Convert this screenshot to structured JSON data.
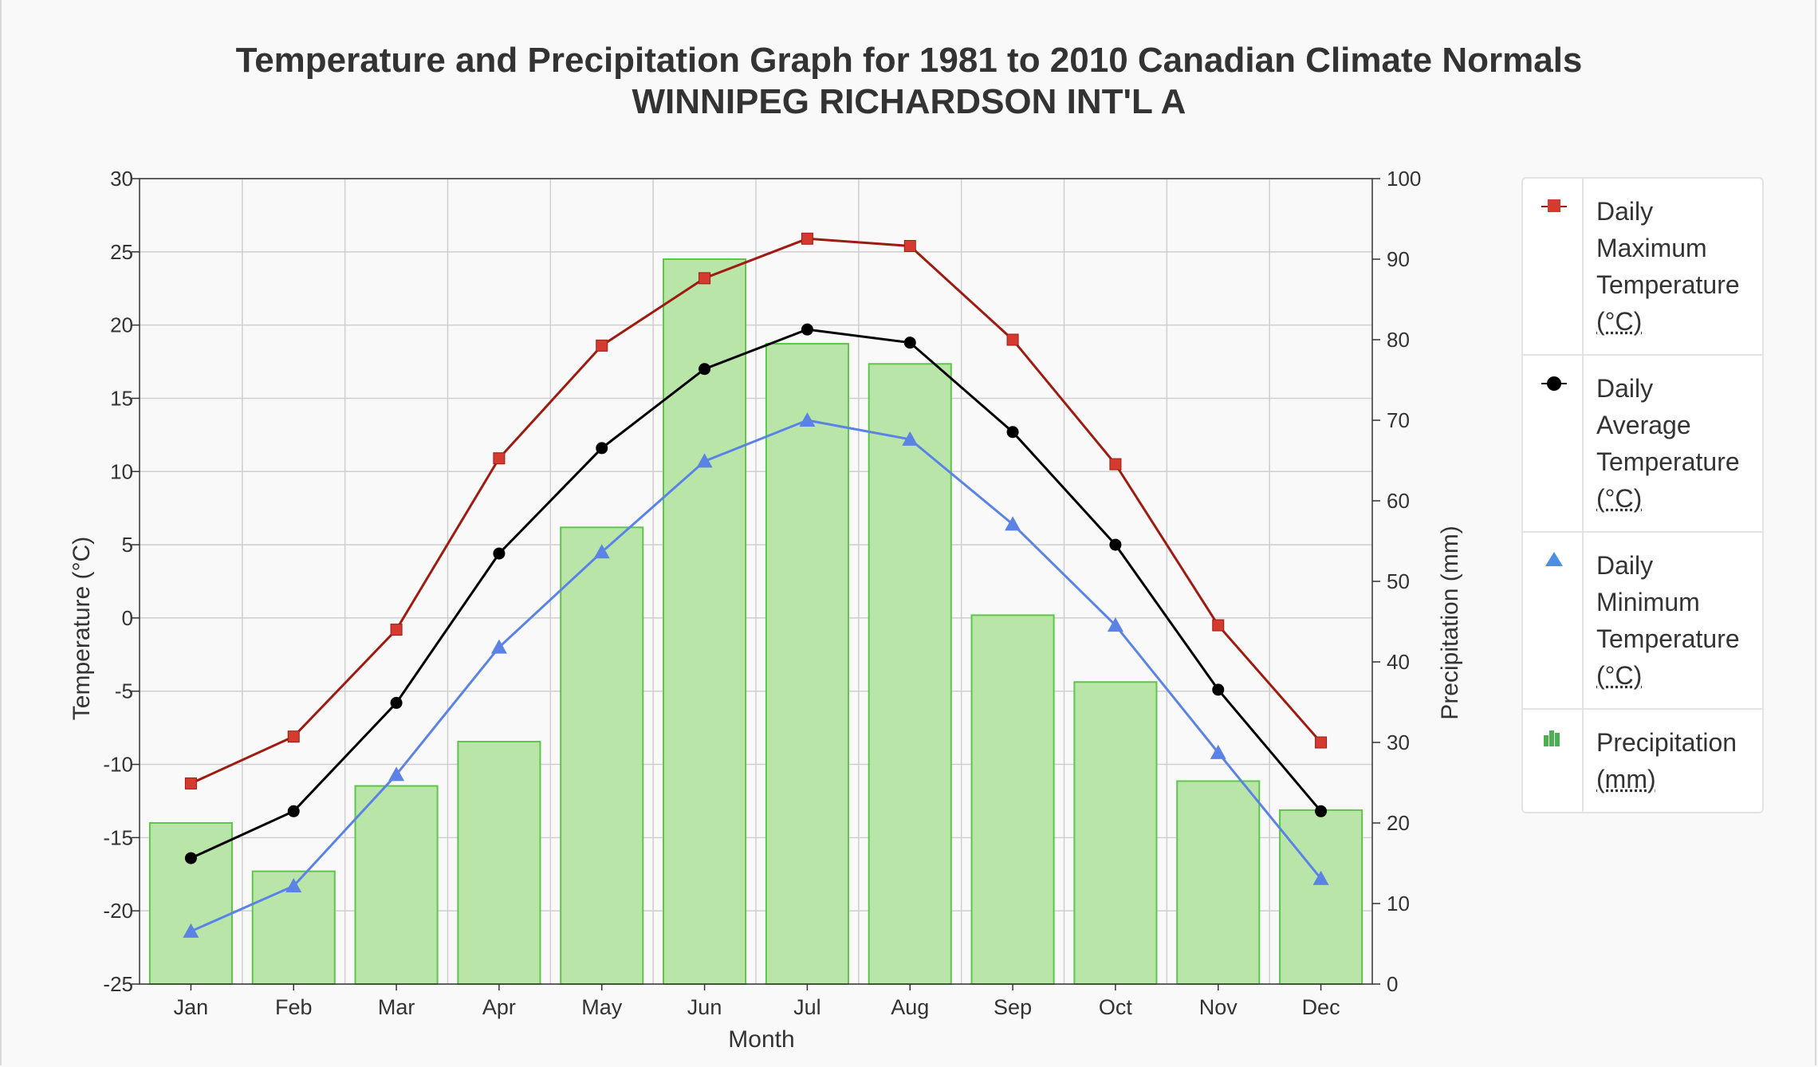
{
  "title_line1": "Temperature and Precipitation Graph for 1981 to 2010 Canadian Climate Normals",
  "title_line2": "WINNIPEG RICHARDSON INT'L A",
  "colors": {
    "max_temp": "#9e1b12",
    "max_temp_marker": "#d43a2f",
    "avg_temp": "#000000",
    "min_temp": "#5b83e6",
    "precip_fill": "#b9e6a8",
    "precip_stroke": "#5dc64a"
  },
  "legend": [
    {
      "icon": "red-square-marker-icon",
      "lines": [
        "Daily",
        "Maximum",
        "Temperature"
      ],
      "unit": "(°C)"
    },
    {
      "icon": "black-circle-marker-icon",
      "lines": [
        "Daily",
        "Average",
        "Temperature"
      ],
      "unit": "(°C)"
    },
    {
      "icon": "blue-triangle-marker-icon",
      "lines": [
        "Daily",
        "Minimum",
        "Temperature"
      ],
      "unit": "(°C)"
    },
    {
      "icon": "green-bars-icon",
      "lines": [
        "Precipitation"
      ],
      "unit": "(mm)"
    }
  ],
  "chart_data": {
    "type": "bar+line",
    "title": "Temperature and Precipitation Graph for 1981 to 2010 Canadian Climate Normals",
    "subtitle": "WINNIPEG RICHARDSON INT'L A",
    "xlabel": "Month",
    "ylabel_left": "Temperature (°C)",
    "ylabel_right": "Precipitation (mm)",
    "categories": [
      "Jan",
      "Feb",
      "Mar",
      "Apr",
      "May",
      "Jun",
      "Jul",
      "Aug",
      "Sep",
      "Oct",
      "Nov",
      "Dec"
    ],
    "ylim_left": [
      -25,
      30
    ],
    "yticks_left": [
      30,
      25,
      20,
      15,
      10,
      5,
      0,
      -5,
      -10,
      -15,
      -20,
      -25
    ],
    "ylim_right": [
      0,
      100
    ],
    "yticks_right": [
      100,
      90,
      80,
      70,
      60,
      50,
      40,
      30,
      20,
      10,
      0
    ],
    "grid": true,
    "legend_position": "right",
    "series": [
      {
        "name": "Daily Maximum Temperature (°C)",
        "type": "line",
        "axis": "left",
        "values": [
          -11.3,
          -8.1,
          -0.8,
          10.9,
          18.6,
          23.2,
          25.9,
          25.4,
          19.0,
          10.5,
          -0.5,
          -8.5
        ]
      },
      {
        "name": "Daily Average Temperature (°C)",
        "type": "line",
        "axis": "left",
        "values": [
          -16.4,
          -13.2,
          -5.8,
          4.4,
          11.6,
          17.0,
          19.7,
          18.8,
          12.7,
          5.0,
          -4.9,
          -13.2
        ]
      },
      {
        "name": "Daily Minimum Temperature (°C)",
        "type": "line",
        "axis": "left",
        "values": [
          -21.4,
          -18.3,
          -10.7,
          -2.0,
          4.5,
          10.7,
          13.5,
          12.2,
          6.4,
          -0.5,
          -9.2,
          -17.8
        ]
      },
      {
        "name": "Precipitation (mm)",
        "type": "bar",
        "axis": "right",
        "values": [
          20.0,
          14.0,
          24.6,
          30.1,
          56.7,
          90.0,
          79.5,
          77.0,
          45.8,
          37.5,
          25.2,
          21.6
        ]
      }
    ]
  }
}
